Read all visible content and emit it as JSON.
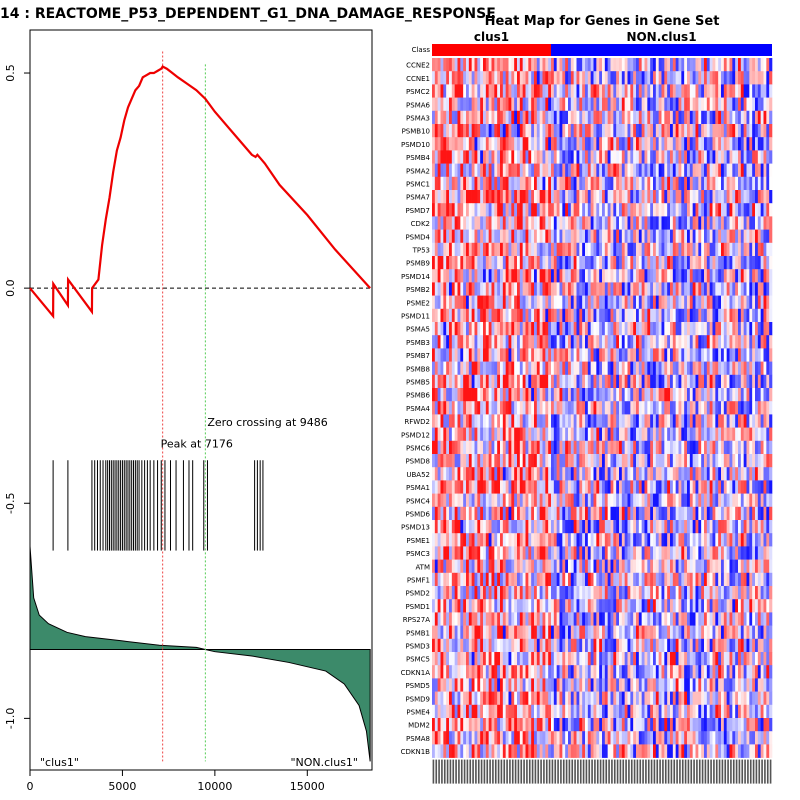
{
  "chart_data": [
    {
      "type": "line",
      "title": "14 : REACTOME_P53_DEPENDENT_G1_DNA_DAMAGE_RESPONSE",
      "xlabel": "",
      "ylabel": "",
      "xlim": [
        0,
        18500
      ],
      "ylim": [
        -1.12,
        0.6
      ],
      "x_ticks": [
        "0",
        "5000",
        "10000",
        "15000"
      ],
      "x_tick_values": [
        0,
        5000,
        10000,
        15000
      ],
      "y_ticks": [
        "0.5",
        "0.0",
        "-0.5",
        "-1.0"
      ],
      "y_tick_values": [
        0.5,
        0.0,
        -0.5,
        -1.0
      ],
      "enrichment_curve": {
        "name": "Running enrichment score",
        "color": "#ee0000",
        "x": [
          0,
          1250,
          1260,
          2050,
          2060,
          3350,
          3360,
          3700,
          3900,
          4100,
          4300,
          4500,
          4700,
          4900,
          5100,
          5300,
          5500,
          5700,
          5900,
          6100,
          6300,
          6500,
          6700,
          6900,
          7100,
          7176,
          7400,
          7700,
          8000,
          8500,
          9000,
          9486,
          10000,
          11000,
          12000,
          12200,
          12300,
          12500,
          12700,
          13500,
          15000,
          16500,
          18400
        ],
        "y": [
          0.0,
          -0.065,
          0.01,
          -0.04,
          0.02,
          -0.055,
          0.0,
          0.02,
          0.1,
          0.16,
          0.21,
          0.27,
          0.32,
          0.35,
          0.39,
          0.42,
          0.44,
          0.46,
          0.47,
          0.49,
          0.495,
          0.5,
          0.5,
          0.505,
          0.51,
          0.515,
          0.51,
          0.5,
          0.49,
          0.475,
          0.46,
          0.44,
          0.41,
          0.36,
          0.31,
          0.305,
          0.31,
          0.3,
          0.29,
          0.24,
          0.17,
          0.09,
          0.0
        ]
      },
      "hit_positions": [
        1250,
        2050,
        3350,
        3500,
        3650,
        3800,
        3950,
        4100,
        4200,
        4300,
        4400,
        4500,
        4600,
        4700,
        4800,
        4900,
        5000,
        5100,
        5200,
        5300,
        5400,
        5500,
        5600,
        5700,
        5800,
        5900,
        6050,
        6200,
        6350,
        6500,
        6700,
        6900,
        7100,
        7300,
        7600,
        7900,
        8300,
        8600,
        8800,
        9400,
        9600,
        12150,
        12300,
        12450,
        12600
      ],
      "ranked_metric": {
        "name": "Ranked list metric",
        "fill_color": "#3c8a6a",
        "x": [
          0,
          200,
          500,
          1000,
          2000,
          3000,
          5000,
          7000,
          9000,
          9486,
          10000,
          12000,
          14000,
          16000,
          17000,
          17800,
          18200,
          18400
        ],
        "y": [
          -0.6,
          -0.72,
          -0.76,
          -0.78,
          -0.8,
          -0.81,
          -0.82,
          -0.83,
          -0.835,
          -0.84,
          -0.845,
          -0.855,
          -0.87,
          -0.89,
          -0.92,
          -0.97,
          -1.03,
          -1.1
        ],
        "baseline": -0.84
      },
      "annotations": {
        "peak_label": "Peak at 7176",
        "peak_x": 7176,
        "peak_color": "#ee4444",
        "zero_label": "Zero crossing at 9486",
        "zero_x": 9486,
        "zero_color": "#55cc55",
        "left_label": "\"clus1\"",
        "right_label": "\"NON.clus1\""
      }
    },
    {
      "type": "heatmap",
      "title": "Heat Map for Genes in Gene Set",
      "class_row_label": "Class",
      "groups": [
        {
          "name": "clus1",
          "color": "#ff0000",
          "fraction": 0.35
        },
        {
          "name": "NON.clus1",
          "color": "#0000ff",
          "fraction": 0.65
        }
      ],
      "column_count": 120,
      "color_scale": [
        "#0000ff",
        "#ffffff",
        "#ff0000"
      ],
      "value_range": [
        -1,
        1
      ],
      "genes": [
        "CCNE2",
        "CCNE1",
        "PSMC2",
        "PSMA6",
        "PSMA3",
        "PSMB10",
        "PSMD10",
        "PSMB4",
        "PSMA2",
        "PSMC1",
        "PSMA7",
        "PSMD7",
        "CDK2",
        "PSMD4",
        "TP53",
        "PSMB9",
        "PSMD14",
        "PSMB2",
        "PSME2",
        "PSMD11",
        "PSMA5",
        "PSMB3",
        "PSMB7",
        "PSMB8",
        "PSMB5",
        "PSMB6",
        "PSMA4",
        "RFWD2",
        "PSMD12",
        "PSMC6",
        "PSMD8",
        "UBA52",
        "PSMA1",
        "PSMC4",
        "PSMD6",
        "PSMD13",
        "PSME1",
        "PSMC3",
        "ATM",
        "PSMF1",
        "PSMD2",
        "PSMD1",
        "RPS27A",
        "PSMB1",
        "PSMD3",
        "PSMC5",
        "CDKN1A",
        "PSMD5",
        "PSMD9",
        "PSME4",
        "MDM2",
        "PSMA8",
        "CDKN1B"
      ]
    }
  ]
}
